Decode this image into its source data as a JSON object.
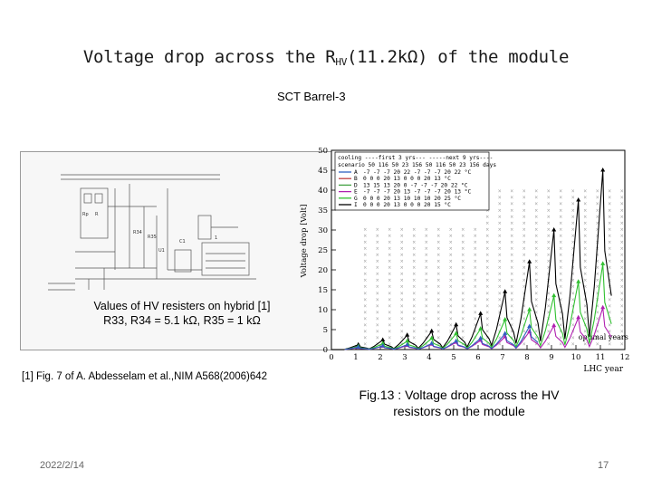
{
  "slide": {
    "title_main": "Voltage drop across the R",
    "title_sub": "HV",
    "title_tail": "(11.2kΩ) of the module",
    "subtitle": "SCT Barrel-3",
    "schematic_caption_line1": "Values of HV resisters on hybrid [1]",
    "schematic_caption_line2": "R33, R34 = 5.1 kΩ, R35 = 1 kΩ",
    "reference": "[1] Fig. 7 of A. Abdesselam et al.,NIM A568(2006)642",
    "fig_caption_line1": "Fig.13 : Voltage drop across the HV",
    "fig_caption_line2": "resistors on the module",
    "date": "2022/2/14",
    "page_number": "17"
  },
  "chart_data": {
    "type": "line",
    "xlabel": "LHC year",
    "ylabel": "Voltage drop [Volt]",
    "xlim": [
      0,
      12
    ],
    "ylim": [
      0,
      50
    ],
    "xticks": [
      "0",
      "1",
      "2",
      "3",
      "4",
      "5",
      "6",
      "7",
      "8",
      "9",
      "10",
      "11",
      "12"
    ],
    "yticks": [
      "0",
      "5",
      "10",
      "15",
      "20",
      "25",
      "30",
      "35",
      "40",
      "45",
      "50"
    ],
    "annotation": "optimal years",
    "legend": {
      "header1": "cooling  ----first 3 yrs---  -----next 9 yrs----",
      "header2": "scenario 50 116 50 23 156 50 116 50 23 156 days",
      "rows": [
        {
          "name": "A",
          "values": "-7 -7 -7 20 22  -7 -7 -7 20 22 °C",
          "color": "#3060c0"
        },
        {
          "name": "B",
          "values": "0  0  0 20 13   0  0  0 20 13 °C",
          "color": "#c04040"
        },
        {
          "name": "D",
          "values": "13 15 13 20  0  -7 -7 -7 20 22 °C",
          "color": "#40a040"
        },
        {
          "name": "E",
          "values": "-7 -7 -7 20 13  -7 -7 -7 20 13 °C",
          "color": "#b020b0"
        },
        {
          "name": "G",
          "values": "0  0  0 20 13  10 10 10 20 25 °C",
          "color": "#30c030"
        },
        {
          "name": "I",
          "values": "0  0  0 20 13   0  0  0 20 15 °C",
          "color": "#000000"
        }
      ]
    },
    "series": [
      {
        "name": "I",
        "color": "#000000",
        "peaks": [
          [
            1.1,
            1.2
          ],
          [
            2.1,
            2.4
          ],
          [
            3.1,
            3.6
          ],
          [
            4.1,
            4.6
          ],
          [
            5.1,
            6.2
          ],
          [
            6.1,
            9.0
          ],
          [
            7.1,
            14.5
          ],
          [
            8.1,
            22.0
          ],
          [
            9.1,
            30.0
          ],
          [
            10.1,
            37.5
          ],
          [
            11.1,
            45.0
          ]
        ]
      },
      {
        "name": "G",
        "color": "#30c030",
        "peaks": [
          [
            1.1,
            0.8
          ],
          [
            2.1,
            1.5
          ],
          [
            3.1,
            2.1
          ],
          [
            4.1,
            2.8
          ],
          [
            5.1,
            4.0
          ],
          [
            6.1,
            5.2
          ],
          [
            7.1,
            7.5
          ],
          [
            8.1,
            10.0
          ],
          [
            9.1,
            13.5
          ],
          [
            10.1,
            17.0
          ],
          [
            11.1,
            21.5
          ]
        ]
      },
      {
        "name": "E",
        "color": "#b020b0",
        "peaks": [
          [
            1.1,
            0.5
          ],
          [
            2.1,
            0.8
          ],
          [
            3.1,
            1.0
          ],
          [
            4.1,
            1.3
          ],
          [
            5.1,
            1.8
          ],
          [
            6.1,
            2.3
          ],
          [
            7.1,
            3.2
          ],
          [
            8.1,
            4.5
          ],
          [
            9.1,
            6.0
          ],
          [
            10.1,
            8.0
          ],
          [
            11.1,
            10.5
          ]
        ]
      },
      {
        "name": "A",
        "color": "#3060c0",
        "peaks": [
          [
            1.1,
            0.6
          ],
          [
            2.1,
            0.9
          ],
          [
            3.1,
            1.2
          ],
          [
            4.1,
            1.5
          ],
          [
            5.1,
            2.1
          ],
          [
            6.1,
            2.8
          ],
          [
            7.1,
            4.0
          ],
          [
            8.1,
            5.8
          ]
        ]
      }
    ]
  }
}
